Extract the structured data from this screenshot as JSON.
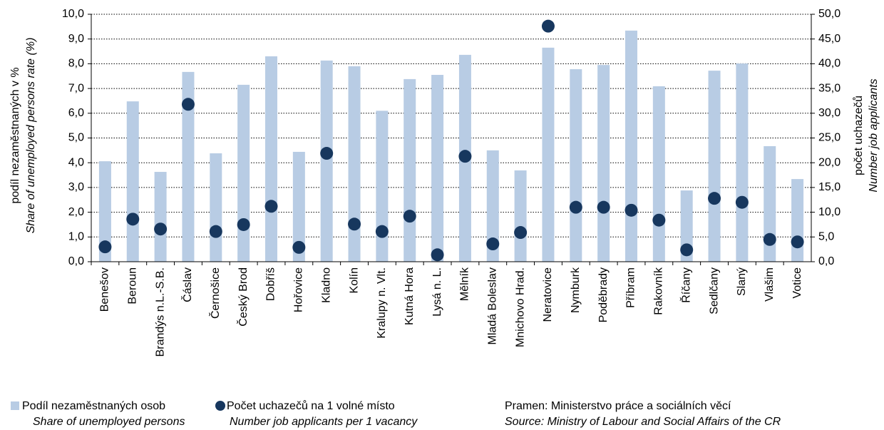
{
  "chart_data": {
    "type": "bar",
    "categories": [
      "Benešov",
      "Beroun",
      "Brandýs n.L.-S.B.",
      "Čáslav",
      "Černošice",
      "Český Brod",
      "Dobříš",
      "Hořovice",
      "Kladno",
      "Kolín",
      "Kralupy n. Vlt.",
      "Kutná Hora",
      "Lysá n. L.",
      "Mělník",
      "Mladá Boleslav",
      "Mnichovo Hrad.",
      "Neratovice",
      "Nymburk",
      "Poděbrady",
      "Příbram",
      "Rakovník",
      "Říčany",
      "Sedlčany",
      "Slaný",
      "Vlašim",
      "Votice"
    ],
    "series": [
      {
        "name": "Podíl nezaměstnaných osob",
        "name_en": "Share of unemployed persons",
        "color": "#b8cce4",
        "type": "bar",
        "values": [
          4.06,
          6.48,
          3.63,
          7.67,
          4.38,
          7.15,
          8.3,
          4.44,
          8.13,
          7.9,
          6.1,
          7.38,
          7.55,
          8.36,
          4.5,
          3.69,
          8.65,
          7.78,
          7.95,
          9.34,
          7.09,
          2.88,
          7.72,
          8.01,
          4.67,
          3.34
        ]
      },
      {
        "name": "Počet uchazečů na 1 volné místo",
        "name_en": "Number job applicants per 1 vacancy",
        "color": "#17375e",
        "type": "scatter",
        "axis": "y2",
        "values": [
          3.0,
          8.6,
          6.6,
          31.8,
          6.1,
          7.5,
          11.2,
          2.9,
          21.9,
          7.6,
          6.1,
          9.2,
          1.4,
          21.3,
          3.6,
          5.9,
          47.6,
          11.0,
          11.0,
          10.4,
          8.4,
          2.4,
          12.8,
          12.0,
          4.5,
          4.0
        ]
      }
    ],
    "ylabel": [
      "podíl nezaměstnaných v %",
      "Share of unemployed persons  rate (%)"
    ],
    "y2label": [
      "počet uchazečů",
      "Number job applicants"
    ],
    "source": [
      "Pramen: Ministerstvo práce a sociálních věcí",
      "Source: Ministry of Labour and Social Affairs of the CR"
    ],
    "ylim": [
      0,
      10
    ],
    "yticks": [
      {
        "value": 0,
        "label": "0,0"
      },
      {
        "value": 1,
        "label": "1,0"
      },
      {
        "value": 2,
        "label": "2,0"
      },
      {
        "value": 3,
        "label": "3,0"
      },
      {
        "value": 4,
        "label": "4,0"
      },
      {
        "value": 5,
        "label": "5,0"
      },
      {
        "value": 6,
        "label": "6,0"
      },
      {
        "value": 7,
        "label": "7,0"
      },
      {
        "value": 8,
        "label": "8,0"
      },
      {
        "value": 9,
        "label": "9,0"
      },
      {
        "value": 10,
        "label": "10,0"
      }
    ],
    "y2lim": [
      0,
      50
    ],
    "y2ticks": [
      {
        "value": 0,
        "label": "0,0"
      },
      {
        "value": 5,
        "label": "5,0"
      },
      {
        "value": 10,
        "label": "10,0"
      },
      {
        "value": 15,
        "label": "15,0"
      },
      {
        "value": 20,
        "label": "20,0"
      },
      {
        "value": 25,
        "label": "25,0"
      },
      {
        "value": 30,
        "label": "30,0"
      },
      {
        "value": 35,
        "label": "35,0"
      },
      {
        "value": 40,
        "label": "40,0"
      },
      {
        "value": 45,
        "label": "45,0"
      },
      {
        "value": 50,
        "label": "50,0"
      }
    ],
    "grid": true
  }
}
